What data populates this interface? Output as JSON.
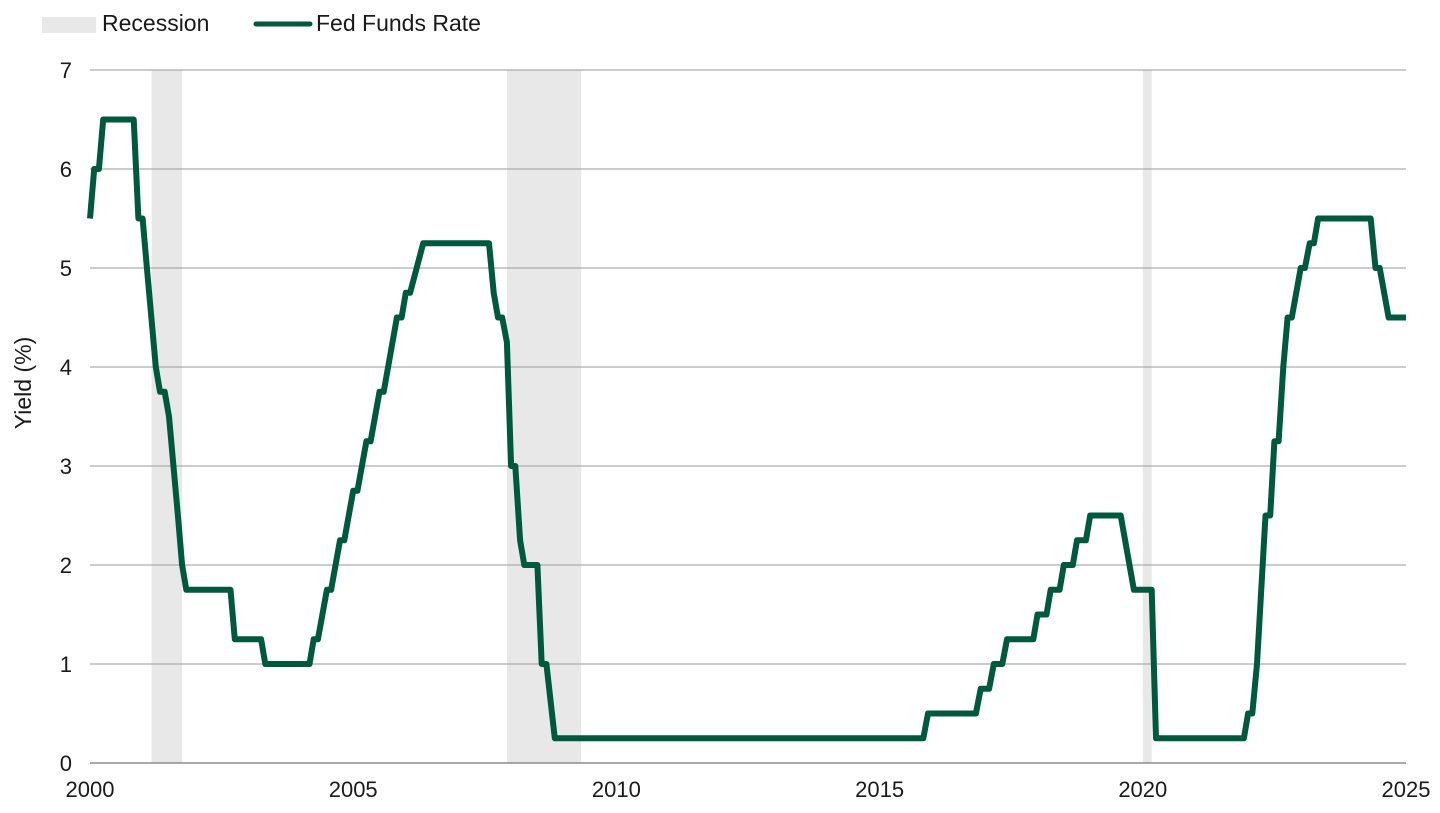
{
  "chart_data": {
    "type": "line",
    "title": "",
    "xlabel": "",
    "ylabel": "Yield (%)",
    "xlim": [
      2000,
      2025
    ],
    "ylim": [
      0,
      7
    ],
    "x_ticks": [
      "2000",
      "2005",
      "2010",
      "2015",
      "2020",
      "2025"
    ],
    "y_ticks": [
      "0",
      "1",
      "2",
      "3",
      "4",
      "5",
      "6",
      "7"
    ],
    "grid": "horizontal",
    "legend": {
      "position": "top-left",
      "items": [
        {
          "name": "Recession",
          "kind": "band",
          "color": "#e8e8e8"
        },
        {
          "name": "Fed Funds Rate",
          "kind": "line",
          "color": "#00583d"
        }
      ]
    },
    "recessions": [
      {
        "start": 2001.17,
        "end": 2001.75
      },
      {
        "start": 2007.92,
        "end": 2009.33
      },
      {
        "start": 2020.0,
        "end": 2020.17
      }
    ],
    "series": [
      {
        "name": "Fed Funds Rate",
        "color": "#00583d",
        "points": [
          [
            2000.0,
            5.5
          ],
          [
            2000.08,
            6.0
          ],
          [
            2000.17,
            6.0
          ],
          [
            2000.25,
            6.5
          ],
          [
            2000.83,
            6.5
          ],
          [
            2000.92,
            5.5
          ],
          [
            2001.0,
            5.5
          ],
          [
            2001.08,
            5.0
          ],
          [
            2001.25,
            4.0
          ],
          [
            2001.33,
            3.75
          ],
          [
            2001.42,
            3.75
          ],
          [
            2001.5,
            3.5
          ],
          [
            2001.67,
            2.5
          ],
          [
            2001.75,
            2.0
          ],
          [
            2001.83,
            1.75
          ],
          [
            2002.67,
            1.75
          ],
          [
            2002.75,
            1.25
          ],
          [
            2003.25,
            1.25
          ],
          [
            2003.33,
            1.0
          ],
          [
            2004.17,
            1.0
          ],
          [
            2004.25,
            1.25
          ],
          [
            2004.33,
            1.25
          ],
          [
            2004.5,
            1.75
          ],
          [
            2004.58,
            1.75
          ],
          [
            2004.75,
            2.25
          ],
          [
            2004.83,
            2.25
          ],
          [
            2005.0,
            2.75
          ],
          [
            2005.08,
            2.75
          ],
          [
            2005.25,
            3.25
          ],
          [
            2005.33,
            3.25
          ],
          [
            2005.5,
            3.75
          ],
          [
            2005.58,
            3.75
          ],
          [
            2005.83,
            4.5
          ],
          [
            2005.92,
            4.5
          ],
          [
            2006.0,
            4.75
          ],
          [
            2006.08,
            4.75
          ],
          [
            2006.33,
            5.25
          ],
          [
            2007.58,
            5.25
          ],
          [
            2007.67,
            4.75
          ],
          [
            2007.75,
            4.5
          ],
          [
            2007.83,
            4.5
          ],
          [
            2007.92,
            4.25
          ],
          [
            2008.0,
            3.0
          ],
          [
            2008.08,
            3.0
          ],
          [
            2008.17,
            2.25
          ],
          [
            2008.25,
            2.0
          ],
          [
            2008.5,
            2.0
          ],
          [
            2008.58,
            1.0
          ],
          [
            2008.67,
            1.0
          ],
          [
            2008.83,
            0.25
          ],
          [
            2015.83,
            0.25
          ],
          [
            2015.92,
            0.5
          ],
          [
            2016.83,
            0.5
          ],
          [
            2016.92,
            0.75
          ],
          [
            2017.08,
            0.75
          ],
          [
            2017.17,
            1.0
          ],
          [
            2017.33,
            1.0
          ],
          [
            2017.42,
            1.25
          ],
          [
            2017.92,
            1.25
          ],
          [
            2018.0,
            1.5
          ],
          [
            2018.17,
            1.5
          ],
          [
            2018.25,
            1.75
          ],
          [
            2018.42,
            1.75
          ],
          [
            2018.5,
            2.0
          ],
          [
            2018.67,
            2.0
          ],
          [
            2018.75,
            2.25
          ],
          [
            2018.92,
            2.25
          ],
          [
            2019.0,
            2.5
          ],
          [
            2019.58,
            2.5
          ],
          [
            2019.83,
            1.75
          ],
          [
            2020.17,
            1.75
          ],
          [
            2020.25,
            0.25
          ],
          [
            2021.92,
            0.25
          ],
          [
            2022.0,
            0.5
          ],
          [
            2022.08,
            0.5
          ],
          [
            2022.17,
            1.0
          ],
          [
            2022.33,
            2.5
          ],
          [
            2022.42,
            2.5
          ],
          [
            2022.5,
            3.25
          ],
          [
            2022.58,
            3.25
          ],
          [
            2022.67,
            4.0
          ],
          [
            2022.75,
            4.5
          ],
          [
            2022.83,
            4.5
          ],
          [
            2023.0,
            5.0
          ],
          [
            2023.08,
            5.0
          ],
          [
            2023.17,
            5.25
          ],
          [
            2023.25,
            5.25
          ],
          [
            2023.33,
            5.5
          ],
          [
            2024.33,
            5.5
          ],
          [
            2024.42,
            5.0
          ],
          [
            2024.5,
            5.0
          ],
          [
            2024.67,
            4.5
          ],
          [
            2025.0,
            4.5
          ]
        ]
      }
    ]
  }
}
